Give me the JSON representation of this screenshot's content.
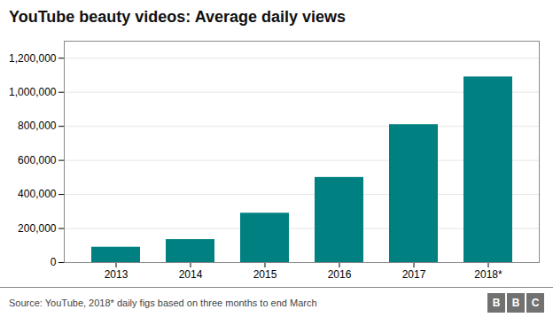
{
  "chart_data": {
    "type": "bar",
    "title": "YouTube beauty videos: Average daily views",
    "categories": [
      "2013",
      "2014",
      "2015",
      "2016",
      "2017",
      "2018*"
    ],
    "values": [
      90000,
      135000,
      290000,
      500000,
      810000,
      1090000
    ],
    "color": "#008080",
    "ylim": [
      0,
      1300000
    ],
    "yticks": [
      0,
      {
        "value": 200000,
        "label": "200,000"
      },
      {
        "value": 400000,
        "label": "400,000"
      },
      {
        "value": 600000,
        "label": "600,000"
      },
      {
        "value": 800000,
        "label": "800,000"
      },
      {
        "value": 1000000,
        "label": "1,000,000"
      },
      {
        "value": 1200000,
        "label": "1,200,000"
      }
    ],
    "grid": true,
    "caption": "Source: YouTube, 2018* daily figs based on three months to end March",
    "logo": [
      "B",
      "B",
      "C"
    ],
    "logo_color": "#717171"
  }
}
